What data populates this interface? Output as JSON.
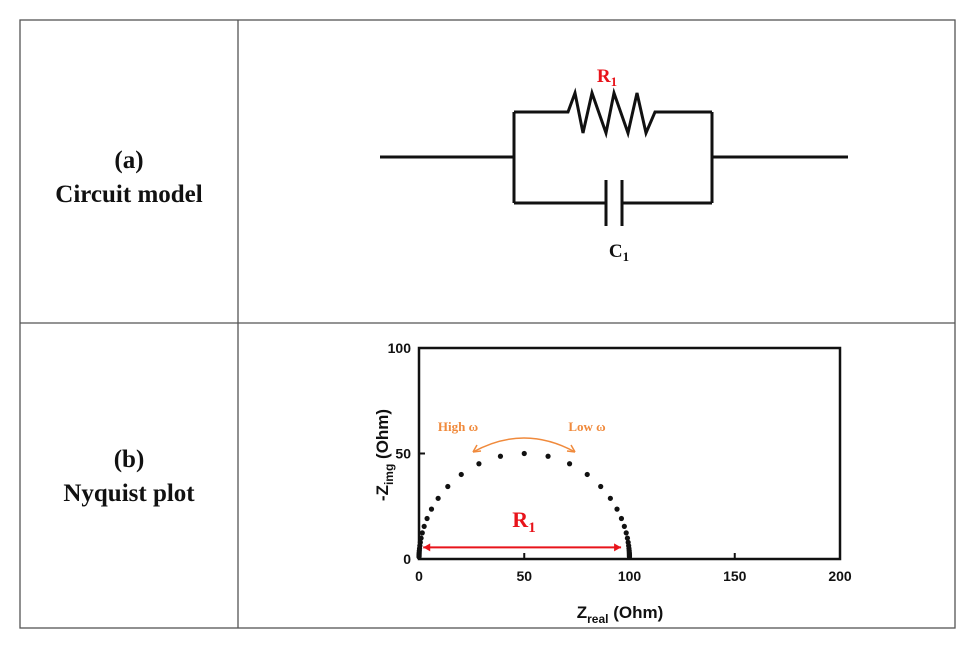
{
  "rows": [
    {
      "tag": "(a)",
      "label": "Circuit model"
    },
    {
      "tag": "(b)",
      "label": "Nyquist plot"
    }
  ],
  "circuit": {
    "resistor_label": {
      "main": "R",
      "sub": "1"
    },
    "capacitor_label": {
      "main": "C",
      "sub": "1"
    },
    "resistor_label_color": "#e8141b"
  },
  "chart_data": {
    "type": "scatter",
    "xlabel": {
      "main": "Z",
      "sub": "real",
      "unit": " (Ohm)"
    },
    "ylabel": {
      "main": "-Z",
      "sub": "img",
      "unit": " (Ohm)"
    },
    "xlim": [
      0,
      200
    ],
    "ylim": [
      0,
      100
    ],
    "xticks": [
      "0",
      "50",
      "100",
      "150",
      "200"
    ],
    "yticks": [
      "0",
      "50",
      "100"
    ],
    "grid": false,
    "marker_color": "#111111",
    "points": [
      [
        99.99,
        1.0
      ],
      [
        99.98,
        1.26
      ],
      [
        99.97,
        1.58
      ],
      [
        99.96,
        2.0
      ],
      [
        99.94,
        2.51
      ],
      [
        99.9,
        3.16
      ],
      [
        99.84,
        3.97
      ],
      [
        99.75,
        5.0
      ],
      [
        99.6,
        6.29
      ],
      [
        99.37,
        7.89
      ],
      [
        99.01,
        9.9
      ],
      [
        98.44,
        12.39
      ],
      [
        97.55,
        15.46
      ],
      [
        96.17,
        19.19
      ],
      [
        94.07,
        23.63
      ],
      [
        90.91,
        28.75
      ],
      [
        86.32,
        34.36
      ],
      [
        79.92,
        40.06
      ],
      [
        71.53,
        45.13
      ],
      [
        61.31,
        48.7
      ],
      [
        50.0,
        50.0
      ],
      [
        38.69,
        48.7
      ],
      [
        28.47,
        45.13
      ],
      [
        20.08,
        40.06
      ],
      [
        13.68,
        34.36
      ],
      [
        9.09,
        28.75
      ],
      [
        5.93,
        23.63
      ],
      [
        3.83,
        19.19
      ],
      [
        2.45,
        15.46
      ],
      [
        1.56,
        12.39
      ],
      [
        0.99,
        9.9
      ],
      [
        0.63,
        7.89
      ],
      [
        0.4,
        6.29
      ],
      [
        0.25,
        5.0
      ],
      [
        0.16,
        3.97
      ],
      [
        0.1,
        3.16
      ],
      [
        0.06,
        2.51
      ],
      [
        0.04,
        2.0
      ],
      [
        0.03,
        1.58
      ],
      [
        0.02,
        1.26
      ],
      [
        0.01,
        1.0
      ]
    ],
    "annotations": {
      "high_freq": "High ω",
      "low_freq": "Low ω",
      "freq_color": "#f08a3c",
      "diameter_label": {
        "main": "R",
        "sub": "1"
      },
      "diameter_color": "#e8141b",
      "diameter_range": [
        2,
        96
      ]
    }
  }
}
